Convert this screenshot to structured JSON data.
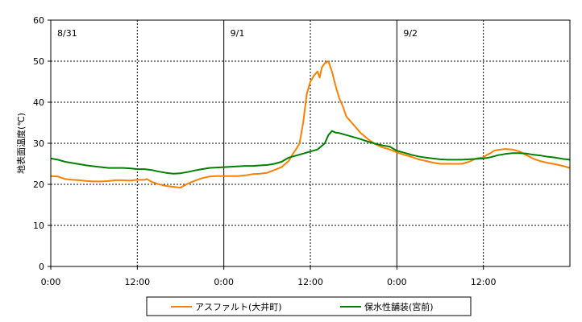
{
  "chart_data": {
    "type": "line",
    "ylabel": "地表面温度(℃)",
    "xlabel": "",
    "ylim": [
      0,
      60
    ],
    "yticks": [
      "0",
      "10",
      "20",
      "30",
      "40",
      "50",
      "60"
    ],
    "xlim_hours": [
      0,
      72
    ],
    "xticks": [
      {
        "hour": 0,
        "label": "0:00"
      },
      {
        "hour": 12,
        "label": "12:00"
      },
      {
        "hour": 24,
        "label": "0:00"
      },
      {
        "hour": 36,
        "label": "12:00"
      },
      {
        "hour": 48,
        "label": "0:00"
      },
      {
        "hour": 60,
        "label": "12:00"
      }
    ],
    "day_labels": [
      {
        "hour": 0,
        "label": "8/31"
      },
      {
        "hour": 24,
        "label": "9/1"
      },
      {
        "hour": 48,
        "label": "9/2"
      }
    ],
    "grid": true,
    "legend_position": "bottom",
    "colors": {
      "asphalt": "#ff7f00",
      "water_retentive": "#008000"
    },
    "series": [
      {
        "name": "アスファルト(大井町)",
        "color": "#ff7f00",
        "points": [
          [
            0,
            22.0
          ],
          [
            1,
            21.9
          ],
          [
            2,
            21.3
          ],
          [
            3,
            21.1
          ],
          [
            4,
            21.0
          ],
          [
            5,
            20.8
          ],
          [
            6,
            20.7
          ],
          [
            7,
            20.7
          ],
          [
            8,
            20.8
          ],
          [
            9,
            21.0
          ],
          [
            10,
            21.0
          ],
          [
            11,
            20.9
          ],
          [
            12,
            21.1
          ],
          [
            13,
            21.1
          ],
          [
            13.3,
            21.3
          ],
          [
            14,
            20.6
          ],
          [
            15,
            20.0
          ],
          [
            16,
            19.6
          ],
          [
            17,
            19.4
          ],
          [
            18,
            19.2
          ],
          [
            18.5,
            19.7
          ],
          [
            19,
            20.2
          ],
          [
            20,
            20.9
          ],
          [
            21,
            21.5
          ],
          [
            22,
            21.9
          ],
          [
            23,
            22.0
          ],
          [
            24,
            22.0
          ],
          [
            25,
            22.0
          ],
          [
            26,
            22.0
          ],
          [
            27,
            22.2
          ],
          [
            28,
            22.5
          ],
          [
            29,
            22.6
          ],
          [
            30,
            22.8
          ],
          [
            31,
            23.5
          ],
          [
            32,
            24.2
          ],
          [
            33,
            25.7
          ],
          [
            33.5,
            27.2
          ],
          [
            34,
            28.5
          ],
          [
            34.5,
            30.0
          ],
          [
            35,
            35.0
          ],
          [
            35.5,
            42.0
          ],
          [
            36,
            45.0
          ],
          [
            36.5,
            46.5
          ],
          [
            37,
            47.5
          ],
          [
            37.3,
            46.0
          ],
          [
            37.6,
            48.5
          ],
          [
            38,
            49.5
          ],
          [
            38.5,
            50.0
          ],
          [
            39,
            47.5
          ],
          [
            39.5,
            44.0
          ],
          [
            40,
            41.0
          ],
          [
            40.5,
            39.0
          ],
          [
            41,
            36.5
          ],
          [
            41.5,
            35.5
          ],
          [
            42,
            34.5
          ],
          [
            43,
            32.5
          ],
          [
            44,
            31.0
          ],
          [
            45,
            29.8
          ],
          [
            46,
            29.0
          ],
          [
            47,
            28.5
          ],
          [
            48,
            27.8
          ],
          [
            49,
            27.2
          ],
          [
            50,
            26.7
          ],
          [
            51,
            26.1
          ],
          [
            52,
            25.7
          ],
          [
            53,
            25.3
          ],
          [
            54,
            25.0
          ],
          [
            55,
            25.0
          ],
          [
            56,
            25.0
          ],
          [
            57,
            25.0
          ],
          [
            58,
            25.5
          ],
          [
            59,
            26.3
          ],
          [
            60,
            26.6
          ],
          [
            60.5,
            27.2
          ],
          [
            61,
            27.6
          ],
          [
            61.5,
            28.2
          ],
          [
            62,
            28.4
          ],
          [
            63,
            28.6
          ],
          [
            64,
            28.5
          ],
          [
            65,
            28.0
          ],
          [
            66,
            27.1
          ],
          [
            67,
            26.2
          ],
          [
            68,
            25.6
          ],
          [
            69,
            25.2
          ],
          [
            70,
            24.9
          ],
          [
            71,
            24.5
          ],
          [
            72,
            24.0
          ]
        ]
      },
      {
        "name": "保水性舗装(宮前)",
        "color": "#008000",
        "points": [
          [
            0,
            26.3
          ],
          [
            1,
            26.0
          ],
          [
            2,
            25.5
          ],
          [
            3,
            25.2
          ],
          [
            4,
            24.9
          ],
          [
            5,
            24.6
          ],
          [
            6,
            24.4
          ],
          [
            7,
            24.2
          ],
          [
            8,
            24.0
          ],
          [
            9,
            24.0
          ],
          [
            10,
            24.0
          ],
          [
            11,
            23.9
          ],
          [
            12,
            23.7
          ],
          [
            13,
            23.7
          ],
          [
            14,
            23.5
          ],
          [
            15,
            23.1
          ],
          [
            16,
            22.8
          ],
          [
            17,
            22.6
          ],
          [
            18,
            22.7
          ],
          [
            19,
            23.0
          ],
          [
            20,
            23.4
          ],
          [
            21,
            23.7
          ],
          [
            22,
            24.0
          ],
          [
            23,
            24.1
          ],
          [
            24,
            24.2
          ],
          [
            25,
            24.3
          ],
          [
            26,
            24.4
          ],
          [
            27,
            24.5
          ],
          [
            28,
            24.5
          ],
          [
            29,
            24.6
          ],
          [
            30,
            24.7
          ],
          [
            31,
            25.0
          ],
          [
            32,
            25.5
          ],
          [
            33,
            26.5
          ],
          [
            34,
            27.0
          ],
          [
            35,
            27.5
          ],
          [
            36,
            28.0
          ],
          [
            37,
            28.5
          ],
          [
            38,
            30.0
          ],
          [
            38.5,
            32.0
          ],
          [
            39,
            33.0
          ],
          [
            39.5,
            32.6
          ],
          [
            40,
            32.5
          ],
          [
            41,
            32.0
          ],
          [
            42,
            31.5
          ],
          [
            43,
            31.0
          ],
          [
            44,
            30.4
          ],
          [
            45,
            29.9
          ],
          [
            46,
            29.5
          ],
          [
            47,
            29.2
          ],
          [
            48,
            28.2
          ],
          [
            49,
            27.7
          ],
          [
            50,
            27.2
          ],
          [
            51,
            26.8
          ],
          [
            52,
            26.5
          ],
          [
            53,
            26.3
          ],
          [
            54,
            26.1
          ],
          [
            55,
            26.0
          ],
          [
            56,
            26.0
          ],
          [
            57,
            26.0
          ],
          [
            58,
            26.1
          ],
          [
            59,
            26.2
          ],
          [
            60,
            26.3
          ],
          [
            61,
            26.6
          ],
          [
            62,
            27.1
          ],
          [
            63,
            27.4
          ],
          [
            64,
            27.6
          ],
          [
            65,
            27.6
          ],
          [
            66,
            27.5
          ],
          [
            67,
            27.2
          ],
          [
            68,
            27.0
          ],
          [
            69,
            26.7
          ],
          [
            70,
            26.5
          ],
          [
            71,
            26.2
          ],
          [
            72,
            26.0
          ]
        ]
      }
    ]
  }
}
